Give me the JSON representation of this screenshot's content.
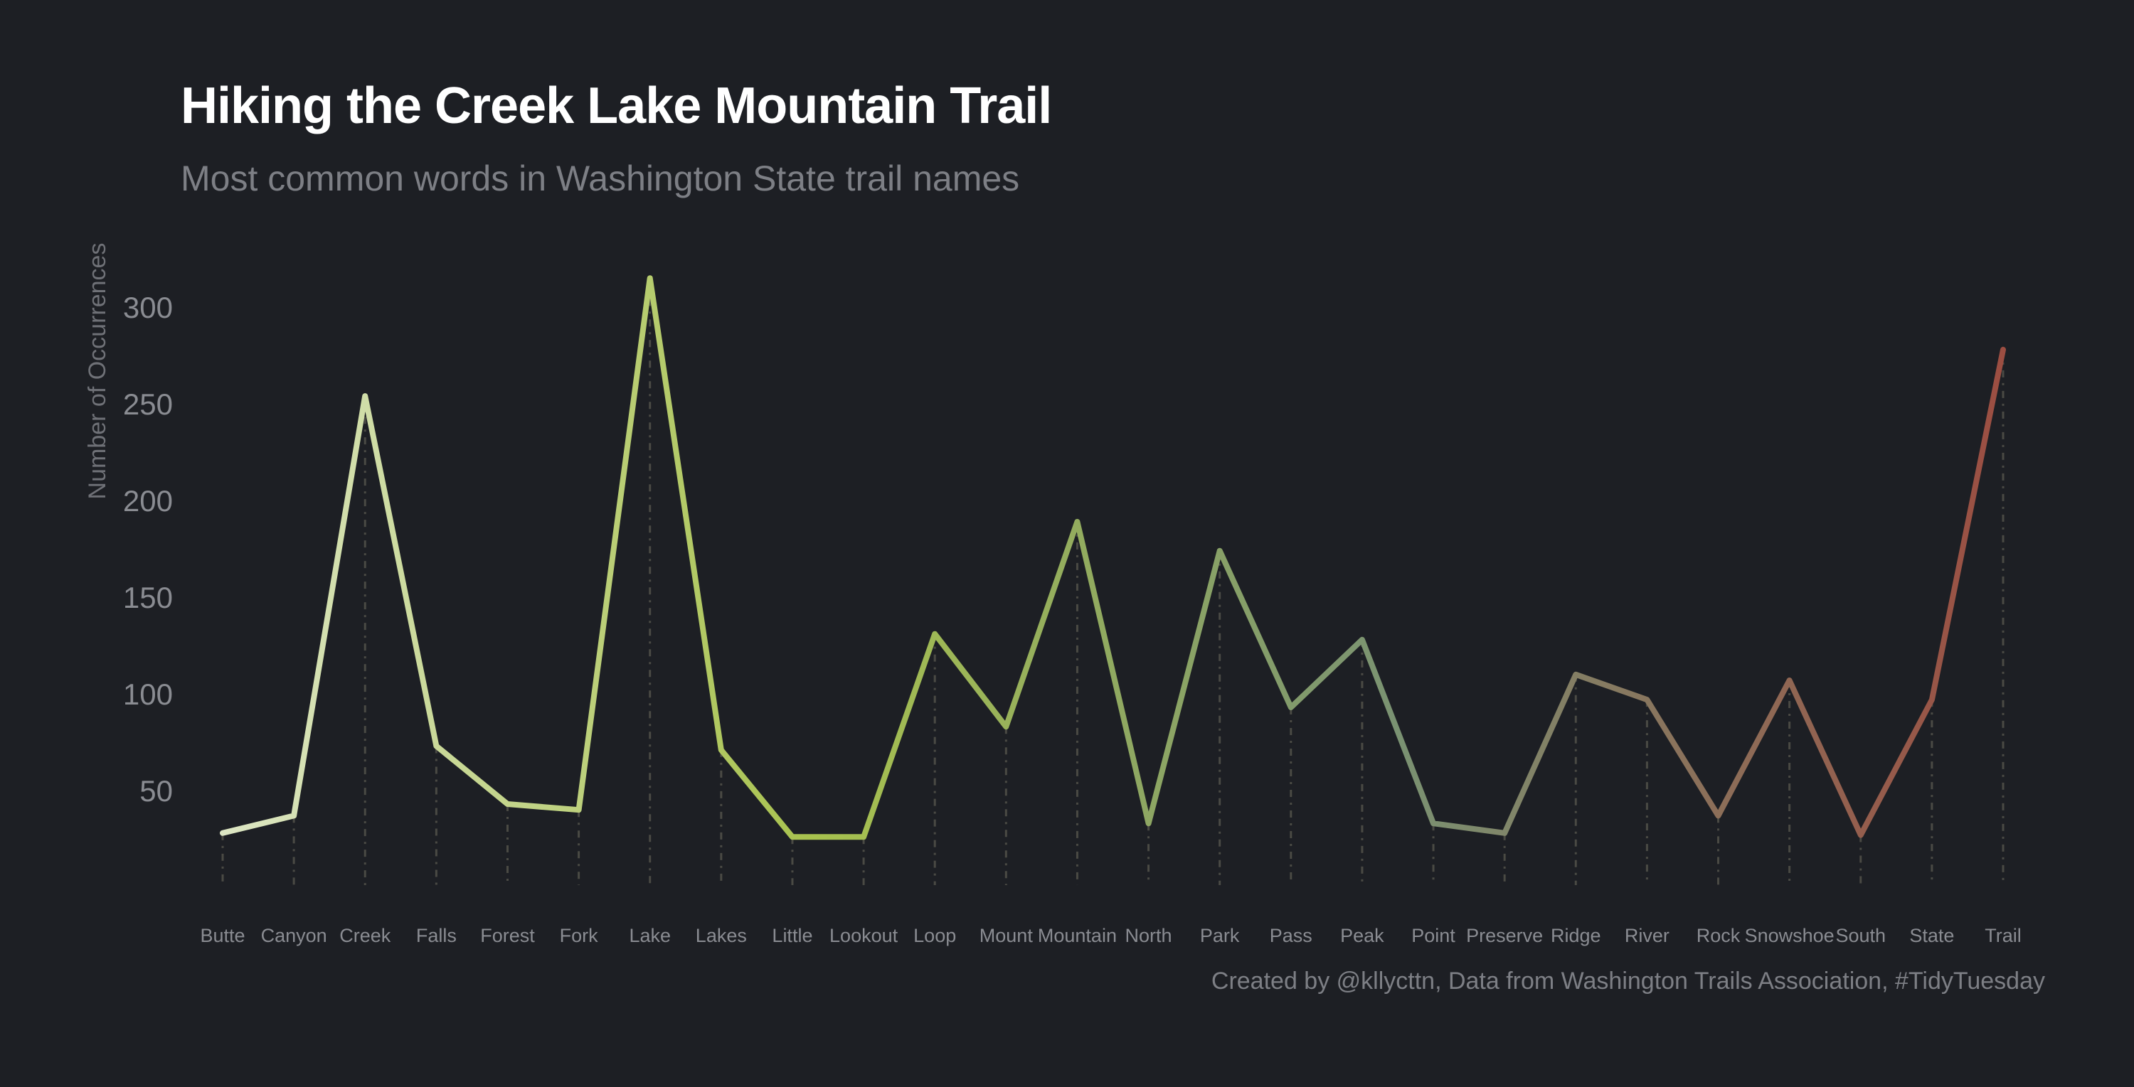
{
  "header": {
    "title": "Hiking the Creek Lake Mountain Trail",
    "subtitle": "Most common words in Washington State trail names"
  },
  "caption": "Created by @kllycttn, Data from Washington Trails Association, #TidyTuesday",
  "colors": {
    "background": "#1d1f24",
    "gradient_start": "#dde6c4",
    "gradient_mid": "#a8c24e",
    "gradient_mid2": "#7a9272",
    "gradient_end": "#9c4e42",
    "guide_line": "#4a4a44"
  },
  "chart_data": {
    "type": "line",
    "title": "Hiking the Creek Lake Mountain Trail",
    "subtitle": "Most common words in Washington State trail names",
    "xlabel": "",
    "ylabel": "Number of Occurrences",
    "ylim": [
      0,
      320
    ],
    "yticks": [
      50,
      100,
      150,
      200,
      250,
      300
    ],
    "grid": false,
    "legend": "none",
    "categories": [
      "Butte",
      "Canyon",
      "Creek",
      "Falls",
      "Forest",
      "Fork",
      "Lake",
      "Lakes",
      "Little",
      "Lookout",
      "Loop",
      "Mount",
      "Mountain",
      "North",
      "Park",
      "Pass",
      "Peak",
      "Point",
      "Preserve",
      "Ridge",
      "River",
      "Rock",
      "Snowshoe",
      "South",
      "State",
      "Trail"
    ],
    "values": [
      28,
      37,
      254,
      73,
      43,
      40,
      315,
      71,
      26,
      26,
      131,
      83,
      189,
      33,
      174,
      93,
      128,
      33,
      28,
      110,
      97,
      37,
      107,
      27,
      97,
      278
    ]
  }
}
